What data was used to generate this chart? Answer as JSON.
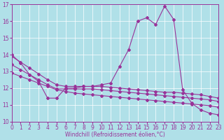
{
  "bg_color": "#b0e0e8",
  "line_color": "#993399",
  "grid_color": "#ffffff",
  "x": [
    0,
    1,
    2,
    3,
    4,
    5,
    6,
    7,
    8,
    9,
    10,
    11,
    12,
    13,
    14,
    15,
    16,
    17,
    18,
    19,
    20,
    21,
    22,
    23
  ],
  "y_main": [
    14.0,
    13.5,
    12.8,
    12.4,
    11.4,
    11.4,
    12.0,
    12.0,
    12.1,
    12.1,
    12.2,
    12.3,
    13.3,
    14.3,
    16.0,
    16.2,
    15.8,
    16.9,
    16.1,
    11.9,
    11.1,
    10.7,
    10.5,
    10.4
  ],
  "y_line1": [
    13.9,
    13.55,
    13.2,
    12.85,
    12.5,
    12.2,
    12.1,
    12.1,
    12.1,
    12.1,
    12.1,
    12.05,
    12.0,
    11.95,
    11.9,
    11.85,
    11.8,
    11.75,
    11.75,
    11.7,
    11.65,
    11.6,
    11.5,
    11.4
  ],
  "y_line2": [
    12.9,
    12.7,
    12.5,
    12.3,
    12.1,
    11.9,
    11.8,
    11.7,
    11.65,
    11.6,
    11.55,
    11.5,
    11.45,
    11.4,
    11.35,
    11.3,
    11.25,
    11.2,
    11.15,
    11.1,
    11.05,
    11.0,
    10.95,
    10.85
  ],
  "y_line3": [
    13.4,
    13.1,
    12.8,
    12.5,
    12.2,
    11.95,
    11.95,
    11.95,
    11.95,
    11.95,
    11.9,
    11.85,
    11.8,
    11.75,
    11.7,
    11.65,
    11.6,
    11.55,
    11.5,
    11.45,
    11.4,
    11.35,
    11.3,
    11.2
  ],
  "xlabel": "Windchill (Refroidissement éolien,°C)",
  "ylim": [
    10,
    17
  ],
  "xlim": [
    0,
    23
  ],
  "yticks": [
    10,
    11,
    12,
    13,
    14,
    15,
    16,
    17
  ],
  "xticks": [
    0,
    1,
    2,
    3,
    4,
    5,
    6,
    7,
    8,
    9,
    10,
    11,
    12,
    13,
    14,
    15,
    16,
    17,
    18,
    19,
    20,
    21,
    22,
    23
  ],
  "xlabel_fontsize": 5.5,
  "tick_fontsize": 5.5,
  "linewidth": 0.8,
  "markersize": 2.0
}
